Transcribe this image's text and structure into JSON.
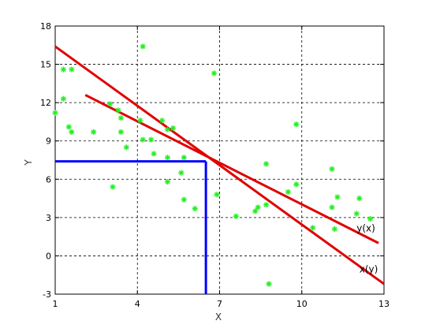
{
  "chart_data": {
    "type": "scatter",
    "xlabel": "X",
    "ylabel": "Y",
    "xlim": [
      1,
      13
    ],
    "ylim": [
      -3,
      18
    ],
    "x_ticks": [
      "1",
      "4",
      "7",
      "10",
      "13"
    ],
    "y_ticks": [
      "-3",
      "0",
      "3",
      "6",
      "9",
      "12",
      "15",
      "18"
    ],
    "grid": true,
    "colors": {
      "points": "#22ee22",
      "regression": "#e00000",
      "guide": "#0000ff"
    },
    "points": [
      {
        "x": 1.0,
        "y": 11.2
      },
      {
        "x": 1.3,
        "y": 14.6
      },
      {
        "x": 1.3,
        "y": 12.3
      },
      {
        "x": 1.6,
        "y": 14.6
      },
      {
        "x": 1.5,
        "y": 10.1
      },
      {
        "x": 1.6,
        "y": 9.7
      },
      {
        "x": 2.4,
        "y": 9.7
      },
      {
        "x": 3.0,
        "y": 11.9
      },
      {
        "x": 3.3,
        "y": 11.4
      },
      {
        "x": 3.4,
        "y": 10.8
      },
      {
        "x": 3.4,
        "y": 9.7
      },
      {
        "x": 3.6,
        "y": 8.5
      },
      {
        "x": 3.1,
        "y": 5.4
      },
      {
        "x": 4.1,
        "y": 10.6
      },
      {
        "x": 4.2,
        "y": 16.4
      },
      {
        "x": 4.2,
        "y": 9.1
      },
      {
        "x": 4.5,
        "y": 9.1
      },
      {
        "x": 4.6,
        "y": 8.0
      },
      {
        "x": 4.9,
        "y": 10.6
      },
      {
        "x": 5.1,
        "y": 9.9
      },
      {
        "x": 5.3,
        "y": 10.0
      },
      {
        "x": 5.1,
        "y": 7.7
      },
      {
        "x": 5.1,
        "y": 5.8
      },
      {
        "x": 5.7,
        "y": 7.7
      },
      {
        "x": 5.6,
        "y": 6.5
      },
      {
        "x": 5.7,
        "y": 4.4
      },
      {
        "x": 6.1,
        "y": 3.7
      },
      {
        "x": 6.8,
        "y": 14.3
      },
      {
        "x": 6.9,
        "y": 4.8
      },
      {
        "x": 7.6,
        "y": 3.1
      },
      {
        "x": 8.3,
        "y": 3.5
      },
      {
        "x": 8.4,
        "y": 3.8
      },
      {
        "x": 8.7,
        "y": 7.2
      },
      {
        "x": 8.7,
        "y": 4.0
      },
      {
        "x": 8.8,
        "y": -2.2
      },
      {
        "x": 9.5,
        "y": 5.0
      },
      {
        "x": 9.8,
        "y": 10.3
      },
      {
        "x": 9.8,
        "y": 5.6
      },
      {
        "x": 10.4,
        "y": 2.2
      },
      {
        "x": 11.1,
        "y": 6.8
      },
      {
        "x": 11.1,
        "y": 3.8
      },
      {
        "x": 11.2,
        "y": 2.1
      },
      {
        "x": 11.3,
        "y": 4.6
      },
      {
        "x": 12.0,
        "y": 3.3
      },
      {
        "x": 12.1,
        "y": 4.5
      },
      {
        "x": 12.5,
        "y": 2.9
      }
    ],
    "lines": [
      {
        "label": "y(x)",
        "x": [
          2.1,
          12.8
        ],
        "y": [
          12.6,
          1.0
        ]
      },
      {
        "label": "x(y)",
        "x": [
          1.0,
          13.0
        ],
        "y": [
          16.4,
          -2.2
        ]
      }
    ],
    "annotations": [
      {
        "text": "y(x)",
        "x": 12.0,
        "y": 1.9
      },
      {
        "text": "x(y)",
        "x": 12.1,
        "y": -1.3
      }
    ],
    "mean_point": {
      "x": 6.5,
      "y": 7.4
    }
  }
}
